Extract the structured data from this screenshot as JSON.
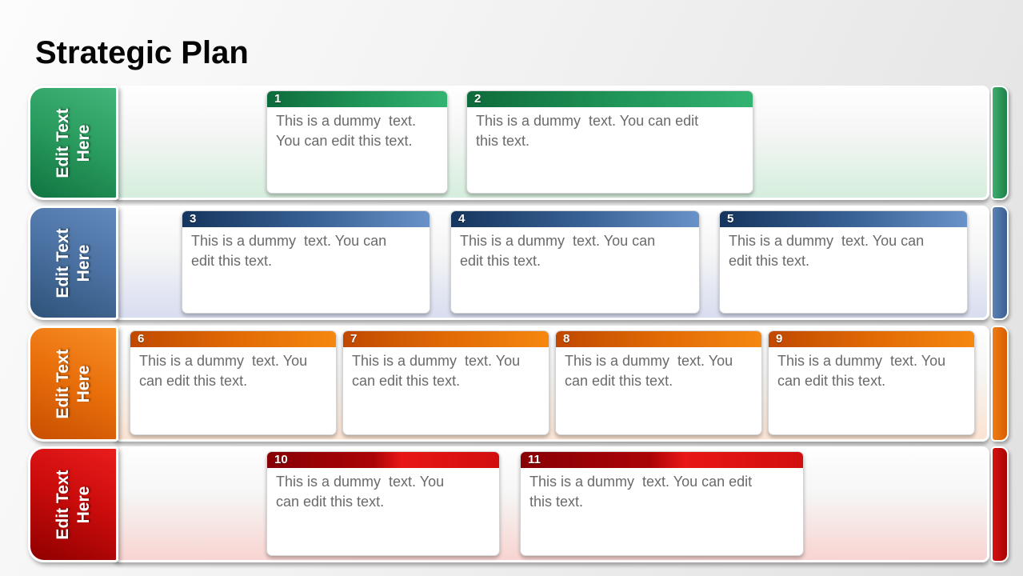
{
  "title": "Strategic Plan",
  "rows": [
    {
      "id": "green",
      "tab": {
        "label": "Edit Text Here",
        "lines": [
          "Edit Text",
          "Here"
        ]
      },
      "colors": {
        "band_tint": "#d5eedd",
        "tab_stops": [
          [
            "#44b47a",
            0
          ],
          [
            "#2a9c5e",
            48
          ],
          [
            "#107441",
            100
          ]
        ],
        "header_stops": [
          [
            "#0e6b3b",
            0
          ],
          [
            "#21965a",
            55
          ],
          [
            "#33b371",
            100
          ]
        ],
        "bar_stops": [
          [
            "#3fae6e",
            0
          ],
          [
            "#1d8049",
            100
          ]
        ]
      },
      "cards": [
        {
          "number": "1",
          "lines": [
            "This is a dummy  text.",
            "You can edit this text."
          ]
        },
        {
          "number": "2",
          "lines": [
            "This is a dummy  text. You can edit",
            "this text."
          ]
        }
      ]
    },
    {
      "id": "blue",
      "tab": {
        "label": "Edit Text Here",
        "lines": [
          "Edit Text",
          "Here"
        ]
      },
      "colors": {
        "band_tint": "#d8ddf0",
        "tab_stops": [
          [
            "#6289bb",
            0
          ],
          [
            "#4a71a1",
            48
          ],
          [
            "#2e5379",
            100
          ]
        ],
        "header_stops": [
          [
            "#15355d",
            0
          ],
          [
            "#3a6397",
            55
          ],
          [
            "#6992c8",
            100
          ]
        ],
        "bar_stops": [
          [
            "#5b83b5",
            0
          ],
          [
            "#3a6091",
            100
          ]
        ]
      },
      "cards": [
        {
          "number": "3",
          "lines": [
            "This is a dummy  text. You can",
            "edit this text."
          ]
        },
        {
          "number": "4",
          "lines": [
            "This is a dummy  text. You can",
            "edit this text."
          ]
        },
        {
          "number": "5",
          "lines": [
            "This is a dummy  text. You can",
            "edit this text."
          ]
        }
      ]
    },
    {
      "id": "orange",
      "tab": {
        "label": "Edit Text Here",
        "lines": [
          "Edit Text",
          "Here"
        ]
      },
      "colors": {
        "band_tint": "#fbe3d2",
        "tab_stops": [
          [
            "#f78d26",
            0
          ],
          [
            "#e96f0b",
            48
          ],
          [
            "#c74f01",
            100
          ]
        ],
        "header_stops": [
          [
            "#c04800",
            0
          ],
          [
            "#e06a05",
            50
          ],
          [
            "#f6870f",
            100
          ]
        ],
        "bar_stops": [
          [
            "#f07d14",
            0
          ],
          [
            "#d85c04",
            100
          ]
        ]
      },
      "cards": [
        {
          "number": "6",
          "lines": [
            "This is a dummy  text. You",
            "can edit this text."
          ]
        },
        {
          "number": "7",
          "lines": [
            "This is a dummy  text. You",
            "can edit this text."
          ]
        },
        {
          "number": "8",
          "lines": [
            "This is a dummy  text. You",
            "can edit this text."
          ]
        },
        {
          "number": "9",
          "lines": [
            "This is a dummy  text. You",
            "can edit this text."
          ]
        }
      ]
    },
    {
      "id": "red",
      "tab": {
        "label": "Edit Text Here",
        "lines": [
          "Edit Text",
          "Here"
        ]
      },
      "colors": {
        "band_tint": "#f8d4d1",
        "tab_stops": [
          [
            "#ea1c1c",
            0
          ],
          [
            "#c90b0b",
            48
          ],
          [
            "#8f0000",
            100
          ]
        ],
        "header_stops": [
          [
            "#870004",
            0
          ],
          [
            "#ab0407",
            46
          ],
          [
            "#e81616",
            58
          ],
          [
            "#d20e0e",
            100
          ]
        ],
        "bar_stops": [
          [
            "#d51212",
            0
          ],
          [
            "#a80404",
            100
          ]
        ]
      },
      "cards": [
        {
          "number": "10",
          "lines": [
            "This is a dummy  text. You",
            "can edit this text."
          ]
        },
        {
          "number": "11",
          "lines": [
            "This is a dummy  text. You can edit",
            "this text."
          ]
        }
      ]
    }
  ]
}
